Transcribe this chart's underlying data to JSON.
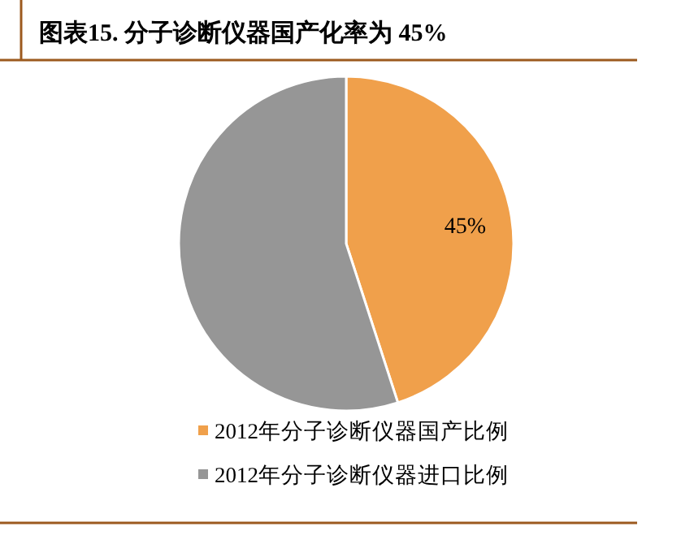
{
  "chart_data": {
    "type": "pie",
    "title": "图表15.  分子诊断仪器国产化率为 45%",
    "categories": [
      "2012年分子诊断仪器国产比例",
      "2012年分子诊断仪器进口比例"
    ],
    "values": [
      45,
      55
    ],
    "colors": [
      "#f0a04b",
      "#969696"
    ],
    "value_labels": [
      "45%",
      null
    ],
    "legend": "bottom"
  }
}
